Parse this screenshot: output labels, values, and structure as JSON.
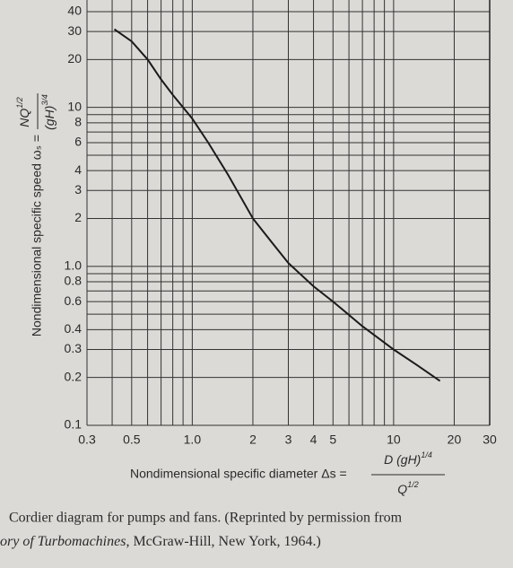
{
  "chart_data": {
    "type": "line",
    "log_x": true,
    "log_y": true,
    "grid": true,
    "x_label": "Nondimensional specific diameter Δs =",
    "x_label_numerator": [
      "D (gH)",
      "1/4"
    ],
    "x_label_denominator": [
      "Q",
      "1/2"
    ],
    "y_label": "Nondimensional specific speed ωₛ =",
    "y_label_numerator": [
      "NQ",
      "1/2"
    ],
    "y_label_denominator": [
      "(gH)",
      "3/4"
    ],
    "xlim": [
      0.3,
      30
    ],
    "ylim": [
      0.1,
      40
    ],
    "xticks": [
      0.3,
      0.5,
      {
        "value": 1,
        "label": "1.0"
      },
      2,
      3,
      4,
      5,
      10,
      20,
      30
    ],
    "yticks": [
      0.1,
      0.2,
      0.3,
      0.4,
      0.6,
      0.8,
      {
        "value": 1,
        "label": "1.0"
      },
      2,
      3,
      4,
      6,
      8,
      10,
      20,
      30,
      40
    ],
    "minor_xticks": [
      0.4,
      0.6,
      0.7,
      0.8,
      0.9,
      6,
      7,
      8,
      9
    ],
    "minor_yticks": [
      0.5,
      0.7,
      0.9,
      5,
      7,
      9
    ],
    "series": [
      {
        "color": "#1a1a1a",
        "x": [
          0.41,
          0.5,
          0.6,
          0.7,
          0.8,
          1.0,
          1.2,
          1.5,
          2,
          2.5,
          3,
          4,
          5,
          7,
          10,
          13,
          17
        ],
        "values": [
          31,
          26,
          20,
          15,
          12,
          8.5,
          6,
          3.8,
          2,
          1.4,
          1.05,
          0.75,
          0.6,
          0.42,
          0.3,
          0.24,
          0.19
        ]
      }
    ]
  },
  "caption": {
    "line1": "Cordier diagram for pumps and fans. (Reprinted by permission from",
    "line2_italic": "ory of Turbomachines",
    "line2_rest": ", McGraw-Hill, New York, 1964.)"
  }
}
